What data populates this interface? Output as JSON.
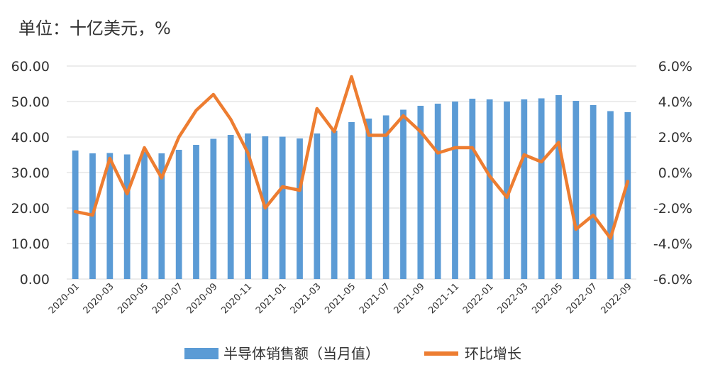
{
  "unit_label": "单位：十亿美元，%",
  "chart_data": {
    "type": "bar",
    "title": "",
    "xlabel": "",
    "ylabel": "",
    "x": [
      "2020-01",
      "2020-02",
      "2020-03",
      "2020-04",
      "2020-05",
      "2020-06",
      "2020-07",
      "2020-08",
      "2020-09",
      "2020-10",
      "2020-11",
      "2020-12",
      "2021-01",
      "2021-02",
      "2021-03",
      "2021-04",
      "2021-05",
      "2021-06",
      "2021-07",
      "2021-08",
      "2021-09",
      "2021-10",
      "2021-11",
      "2021-12",
      "2022-01",
      "2022-02",
      "2022-03",
      "2022-04",
      "2022-05",
      "2022-06",
      "2022-07",
      "2022-08",
      "2022-09"
    ],
    "x_tick_labels": [
      "2020-01",
      "2020-03",
      "2020-05",
      "2020-07",
      "2020-09",
      "2020-11",
      "2021-01",
      "2021-03",
      "2021-05",
      "2021-07",
      "2021-09",
      "2021-11",
      "2022-01",
      "2022-03",
      "2022-05",
      "2022-07",
      "2022-09"
    ],
    "y_left": {
      "range": [
        0,
        60
      ],
      "ticks": [
        "0.00",
        "10.00",
        "20.00",
        "30.00",
        "40.00",
        "50.00",
        "60.00"
      ]
    },
    "y_right": {
      "range": [
        -6,
        6
      ],
      "ticks": [
        "-6.0%",
        "-4.0%",
        "-2.0%",
        "0.0%",
        "2.0%",
        "4.0%",
        "6.0%"
      ]
    },
    "grid": "horizontal",
    "legend_position": "bottom",
    "series": [
      {
        "name": "半导体销售额（当月值）",
        "type": "bar",
        "axis": "left",
        "color": "#5b9bd5",
        "values": [
          36.2,
          35.4,
          35.5,
          35.1,
          35.8,
          35.4,
          36.4,
          37.8,
          39.5,
          40.6,
          41.0,
          40.2,
          40.1,
          39.6,
          41.0,
          41.8,
          44.2,
          45.2,
          46.1,
          47.7,
          48.8,
          49.4,
          50.0,
          50.8,
          50.6,
          50.0,
          50.6,
          50.9,
          51.8,
          50.2,
          49.0,
          47.3,
          47.0
        ]
      },
      {
        "name": "环比增长",
        "type": "line",
        "axis": "right",
        "color": "#ed7d31",
        "values": [
          -2.2,
          -2.4,
          0.8,
          -1.2,
          1.4,
          -0.3,
          2.0,
          3.5,
          4.4,
          3.0,
          1.1,
          -2.0,
          -0.8,
          -1.0,
          3.6,
          2.3,
          5.4,
          2.1,
          2.1,
          3.2,
          2.3,
          1.1,
          1.4,
          1.4,
          -0.2,
          -1.4,
          1.0,
          0.6,
          1.7,
          -3.2,
          -2.4,
          -3.7,
          -0.5
        ]
      }
    ]
  }
}
